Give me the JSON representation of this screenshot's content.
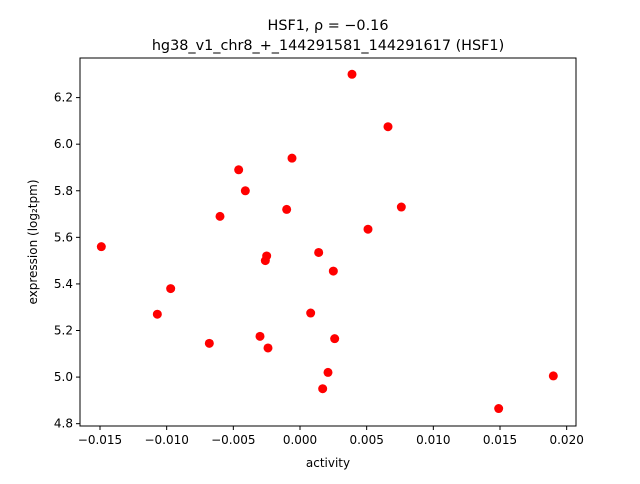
{
  "chart_data": {
    "type": "scatter",
    "title_line1": "HSF1, ρ = −0.16",
    "title_line2": "hg38_v1_chr8_+_144291581_144291617 (HSF1)",
    "xlabel": "activity",
    "ylabel": "expression (log₂tpm)",
    "xlim": [
      -0.0165,
      0.0207
    ],
    "ylim": [
      4.79,
      6.37
    ],
    "xticks": [
      -0.015,
      -0.01,
      -0.005,
      0.0,
      0.005,
      0.01,
      0.015,
      0.02
    ],
    "xtick_labels": [
      "−0.015",
      "−0.010",
      "−0.005",
      "0.000",
      "0.005",
      "0.010",
      "0.015",
      "0.020"
    ],
    "yticks": [
      4.8,
      5.0,
      5.2,
      5.4,
      5.6,
      5.8,
      6.0,
      6.2
    ],
    "ytick_labels": [
      "4.8",
      "5.0",
      "5.2",
      "5.4",
      "5.6",
      "5.8",
      "6.0",
      "6.2"
    ],
    "grid": false,
    "marker_color": "#ff0000",
    "points": [
      {
        "x": -0.0149,
        "y": 5.56
      },
      {
        "x": -0.0107,
        "y": 5.27
      },
      {
        "x": -0.0097,
        "y": 5.38
      },
      {
        "x": -0.0068,
        "y": 5.145
      },
      {
        "x": -0.006,
        "y": 5.69
      },
      {
        "x": -0.0046,
        "y": 5.89
      },
      {
        "x": -0.0041,
        "y": 5.8
      },
      {
        "x": -0.003,
        "y": 5.175
      },
      {
        "x": -0.0026,
        "y": 5.5
      },
      {
        "x": -0.0025,
        "y": 5.52
      },
      {
        "x": -0.0024,
        "y": 5.125
      },
      {
        "x": -0.001,
        "y": 5.72
      },
      {
        "x": -0.0006,
        "y": 5.94
      },
      {
        "x": 0.0008,
        "y": 5.275
      },
      {
        "x": 0.0014,
        "y": 5.535
      },
      {
        "x": 0.0017,
        "y": 4.95
      },
      {
        "x": 0.0021,
        "y": 5.02
      },
      {
        "x": 0.0025,
        "y": 5.455
      },
      {
        "x": 0.0026,
        "y": 5.165
      },
      {
        "x": 0.0039,
        "y": 6.3
      },
      {
        "x": 0.0051,
        "y": 5.635
      },
      {
        "x": 0.0066,
        "y": 6.075
      },
      {
        "x": 0.0076,
        "y": 5.73
      },
      {
        "x": 0.0149,
        "y": 4.865
      },
      {
        "x": 0.019,
        "y": 5.005
      }
    ]
  }
}
